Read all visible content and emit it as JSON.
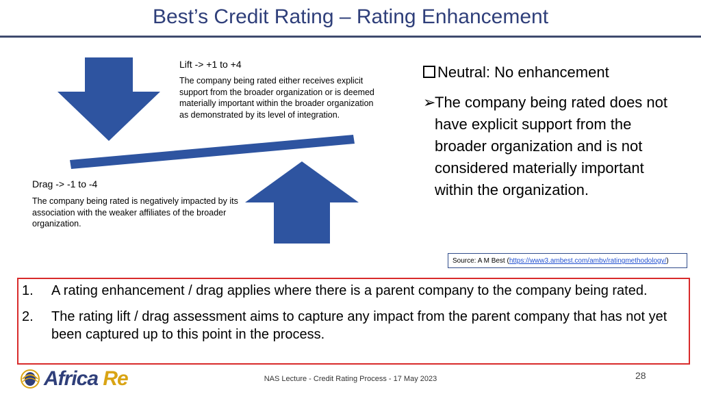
{
  "title": "Best’s Credit Rating – Rating Enhancement",
  "lift": {
    "heading": "Lift -> +1 to +4",
    "description": "The company being rated either receives explicit support from the broader organization or is deemed materially important within the broader organization as demonstrated by its level of integration."
  },
  "drag": {
    "heading": "Drag -> -1 to -4",
    "description": "The company being rated is negatively impacted by its association with the weaker affiliates of the broader organization."
  },
  "neutral": {
    "heading": "Neutral: No enhancement",
    "marker": "➢",
    "description": "The company being rated does not have explicit support from the broader organization and is not considered materially important within the organization."
  },
  "source": {
    "prefix": "Source: A M Best (",
    "link": "https://www3.ambest.com/ambv/ratingmethodology/",
    "suffix": ")"
  },
  "notes": [
    {
      "num": "1.",
      "text": "A rating enhancement / drag applies where there is a parent company to the company being rated."
    },
    {
      "num": "2.",
      "text": "The rating lift / drag assessment aims to capture any impact from the parent company that has not yet been captured up to this point in the process."
    }
  ],
  "logo": {
    "text_a": "Africa ",
    "text_b": "Re"
  },
  "footer": "NAS Lecture - Credit Rating Process - 17 May 2023",
  "page_number": "28",
  "colors": {
    "title": "#2f3f7a",
    "arrow": "#2e54a0",
    "box_border": "#d82a2a",
    "logo_gold": "#d9a414"
  }
}
